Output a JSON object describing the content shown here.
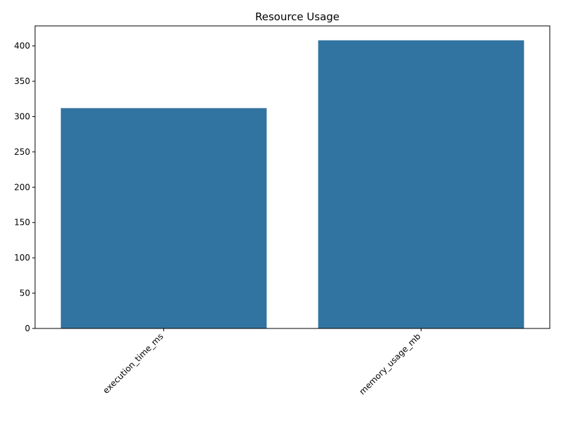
{
  "chart_data": {
    "type": "bar",
    "title": "Resource Usage",
    "xlabel": "",
    "ylabel": "",
    "categories": [
      "execution_time_ms",
      "memory_usage_mb"
    ],
    "values": [
      312,
      408
    ],
    "ylim": [
      0,
      428.4
    ],
    "yticks": [
      0,
      50,
      100,
      150,
      200,
      250,
      300,
      350,
      400
    ],
    "bar_color": "#3274a1",
    "grid": false,
    "legend": "none"
  }
}
